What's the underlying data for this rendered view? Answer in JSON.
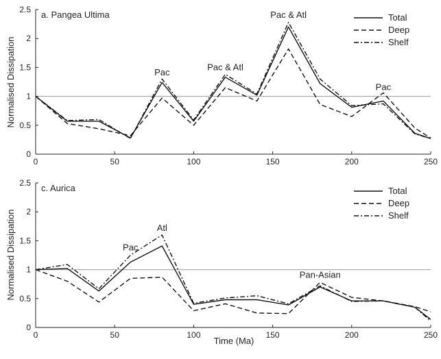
{
  "chart_data": [
    {
      "type": "line",
      "title": "a. Pangea Ultima",
      "xlabel": "",
      "ylabel": "Normalised Dissipation",
      "xlim": [
        0,
        250
      ],
      "ylim": [
        0,
        2.5
      ],
      "xticks": [
        "0",
        "50",
        "100",
        "150",
        "200",
        "250"
      ],
      "yticks": [
        "0",
        "0.5",
        "1",
        "1.5",
        "2",
        "2.5"
      ],
      "reference_line": 1,
      "legend_position": "top-right",
      "x": [
        0,
        20,
        40,
        60,
        80,
        100,
        120,
        140,
        160,
        180,
        200,
        220,
        240,
        250
      ],
      "series": [
        {
          "name": "Total",
          "style": "solid",
          "values": [
            1.0,
            0.57,
            0.57,
            0.28,
            1.24,
            0.57,
            1.33,
            1.02,
            2.2,
            1.22,
            0.81,
            0.92,
            0.36,
            0.27
          ]
        },
        {
          "name": "Deep",
          "style": "dashed",
          "values": [
            1.0,
            0.53,
            0.44,
            0.32,
            0.97,
            0.5,
            1.15,
            0.92,
            1.82,
            0.86,
            0.65,
            1.06,
            0.45,
            0.28
          ]
        },
        {
          "name": "Shelf",
          "style": "dashdot",
          "values": [
            1.0,
            0.58,
            0.6,
            0.27,
            1.3,
            0.59,
            1.38,
            1.04,
            2.28,
            1.3,
            0.84,
            0.87,
            0.35,
            0.27
          ]
        }
      ],
      "annotations": [
        {
          "text": "Pac",
          "x": 80,
          "y": 1.36
        },
        {
          "text": "Pac & Atl",
          "x": 120,
          "y": 1.45
        },
        {
          "text": "Pac & Atl",
          "x": 160,
          "y": 2.36
        },
        {
          "text": "Pac",
          "x": 220,
          "y": 1.11
        }
      ]
    },
    {
      "type": "line",
      "title": "c. Aurica",
      "xlabel": "Time (Ma)",
      "ylabel": "Normalised Dissipation",
      "xlim": [
        0,
        250
      ],
      "ylim": [
        0,
        2.5
      ],
      "xticks": [
        "0",
        "50",
        "100",
        "150",
        "200",
        "250"
      ],
      "yticks": [
        "0",
        "0.5",
        "1",
        "1.5",
        "2",
        "2.5"
      ],
      "reference_line": 1,
      "legend_position": "top-right",
      "x": [
        0,
        20,
        40,
        60,
        80,
        100,
        120,
        140,
        160,
        180,
        200,
        220,
        240,
        250
      ],
      "series": [
        {
          "name": "Total",
          "style": "solid",
          "values": [
            1.0,
            1.02,
            0.63,
            1.13,
            1.41,
            0.4,
            0.48,
            0.48,
            0.39,
            0.7,
            0.46,
            0.46,
            0.35,
            0.14
          ]
        },
        {
          "name": "Deep",
          "style": "dashed",
          "values": [
            1.0,
            0.8,
            0.44,
            0.85,
            0.87,
            0.29,
            0.41,
            0.25,
            0.24,
            0.78,
            0.52,
            0.46,
            0.36,
            0.27
          ]
        },
        {
          "name": "Shelf",
          "style": "dashdot",
          "values": [
            1.0,
            1.09,
            0.67,
            1.25,
            1.6,
            0.42,
            0.51,
            0.55,
            0.41,
            0.72,
            0.45,
            0.46,
            0.35,
            0.11
          ]
        }
      ],
      "annotations": [
        {
          "text": "Pac",
          "x": 60,
          "y": 1.33
        },
        {
          "text": "Atl",
          "x": 80,
          "y": 1.67
        },
        {
          "text": "Pan-Asian",
          "x": 180,
          "y": 0.86
        }
      ]
    }
  ]
}
